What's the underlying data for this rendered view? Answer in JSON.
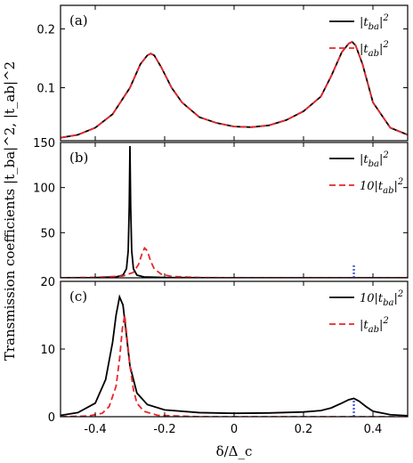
{
  "chart_data": {
    "type": "line",
    "ylabel": "Transmission coefficients |t_ba|^2, |t_ab|^2",
    "xlabel": "δ/Δ_c",
    "xlim": [
      -0.5,
      0.5
    ],
    "xticks": [
      "-0.4",
      "-0.2",
      "0",
      "0.2",
      "0.4"
    ],
    "panels": [
      {
        "label": "(a)",
        "ylim": [
          0.01,
          0.24
        ],
        "yticks": [
          0.1,
          0.2
        ],
        "ytick_labels": [
          "0.1",
          "0.2"
        ],
        "legend_position": "top-right",
        "series": [
          {
            "name": "|t_ba|^2",
            "color": "#000000",
            "dash": "solid",
            "x": [
              -0.5,
              -0.45,
              -0.4,
              -0.35,
              -0.3,
              -0.27,
              -0.25,
              -0.24,
              -0.23,
              -0.21,
              -0.18,
              -0.15,
              -0.1,
              -0.05,
              0,
              0.05,
              0.1,
              0.15,
              0.2,
              0.25,
              0.28,
              0.31,
              0.33,
              0.34,
              0.35,
              0.37,
              0.4,
              0.45,
              0.5
            ],
            "y": [
              0.015,
              0.02,
              0.032,
              0.055,
              0.1,
              0.14,
              0.155,
              0.158,
              0.155,
              0.135,
              0.1,
              0.075,
              0.05,
              0.04,
              0.034,
              0.033,
              0.036,
              0.045,
              0.06,
              0.085,
              0.12,
              0.16,
              0.175,
              0.178,
              0.172,
              0.14,
              0.075,
              0.032,
              0.02
            ]
          },
          {
            "name": "|t_ab|^2",
            "color": "#e8262b",
            "dash": "dashed",
            "x": [
              -0.5,
              -0.45,
              -0.4,
              -0.35,
              -0.3,
              -0.27,
              -0.25,
              -0.24,
              -0.23,
              -0.21,
              -0.18,
              -0.15,
              -0.1,
              -0.05,
              0,
              0.05,
              0.1,
              0.15,
              0.2,
              0.25,
              0.28,
              0.31,
              0.33,
              0.34,
              0.35,
              0.37,
              0.4,
              0.45,
              0.5
            ],
            "y": [
              0.015,
              0.02,
              0.032,
              0.055,
              0.1,
              0.14,
              0.155,
              0.158,
              0.155,
              0.135,
              0.1,
              0.075,
              0.05,
              0.04,
              0.034,
              0.033,
              0.036,
              0.045,
              0.06,
              0.085,
              0.12,
              0.16,
              0.175,
              0.178,
              0.172,
              0.14,
              0.075,
              0.032,
              0.02
            ]
          }
        ],
        "legend": [
          "|t_ba|^2",
          "|t_ab|^2"
        ]
      },
      {
        "label": "(b)",
        "ylim": [
          0,
          150
        ],
        "yticks": [
          0,
          50,
          100,
          150
        ],
        "ytick_labels": [
          "",
          "50",
          "100",
          "150"
        ],
        "legend_position": "top-right",
        "series": [
          {
            "name": "|t_ba|^2",
            "color": "#000000",
            "dash": "solid",
            "x": [
              -0.5,
              -0.4,
              -0.34,
              -0.32,
              -0.31,
              -0.305,
              -0.302,
              -0.3,
              -0.298,
              -0.295,
              -0.29,
              -0.28,
              -0.26,
              -0.2,
              0,
              0.2,
              0.5
            ],
            "y": [
              0,
              0.2,
              1,
              3,
              10,
              30,
              80,
              146,
              80,
              30,
              10,
              3,
              1,
              0.3,
              0,
              0,
              0
            ]
          },
          {
            "name": "10|t_ab|^2",
            "color": "#e8262b",
            "dash": "dashed",
            "x": [
              -0.5,
              -0.4,
              -0.32,
              -0.29,
              -0.275,
              -0.265,
              -0.258,
              -0.25,
              -0.24,
              -0.23,
              -0.21,
              -0.18,
              -0.1,
              0,
              0.2,
              0.5
            ],
            "y": [
              0,
              0.5,
              2,
              6,
              15,
              27,
              33,
              30,
              18,
              10,
              4,
              1.5,
              0.3,
              0,
              0,
              0
            ]
          },
          {
            "name": "marker",
            "color": "#4a5fd0",
            "dash": "dotted",
            "x": [
              0.345,
              0.345
            ],
            "y": [
              0,
              14
            ]
          }
        ],
        "legend": [
          "|t_ba|^2",
          "10|t_ab|^2"
        ]
      },
      {
        "label": "(c)",
        "ylim": [
          0,
          20
        ],
        "yticks": [
          0,
          10,
          20
        ],
        "ytick_labels": [
          "0",
          "10",
          "20"
        ],
        "legend_position": "top-right",
        "series": [
          {
            "name": "10|t_ba|^2",
            "color": "#000000",
            "dash": "solid",
            "x": [
              -0.5,
              -0.45,
              -0.4,
              -0.37,
              -0.35,
              -0.34,
              -0.33,
              -0.32,
              -0.31,
              -0.3,
              -0.28,
              -0.25,
              -0.2,
              -0.1,
              0,
              0.1,
              0.2,
              0.25,
              0.28,
              0.31,
              0.33,
              0.345,
              0.36,
              0.38,
              0.4,
              0.45,
              0.5
            ],
            "y": [
              0.2,
              0.6,
              2,
              5.5,
              11,
              15,
              17.7,
              16.5,
              12,
              7.5,
              3.5,
              1.8,
              1,
              0.6,
              0.5,
              0.55,
              0.7,
              0.9,
              1.3,
              2,
              2.5,
              2.7,
              2.3,
              1.5,
              0.8,
              0.3,
              0.15
            ]
          },
          {
            "name": "|t_ab|^2",
            "color": "#e8262b",
            "dash": "dashed",
            "x": [
              -0.5,
              -0.42,
              -0.38,
              -0.36,
              -0.34,
              -0.33,
              -0.322,
              -0.315,
              -0.31,
              -0.3,
              -0.29,
              -0.28,
              -0.26,
              -0.22,
              -0.1,
              0,
              0.5
            ],
            "y": [
              0,
              0.1,
              0.5,
              1.5,
              4.5,
              8.5,
              13,
              15,
              12.5,
              7.5,
              4,
              2,
              0.8,
              0.2,
              0,
              0,
              0
            ]
          },
          {
            "name": "marker",
            "color": "#4a5fd0",
            "dash": "dotted",
            "x": [
              0.345,
              0.345
            ],
            "y": [
              0,
              2.5
            ]
          }
        ],
        "legend": [
          "10|t_ba|^2",
          "|t_ab|^2"
        ]
      }
    ]
  }
}
